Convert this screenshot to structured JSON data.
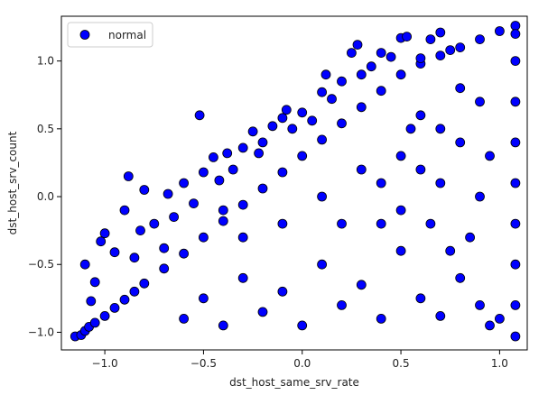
{
  "chart_data": {
    "type": "scatter",
    "xlabel": "dst_host_same_srv_rate",
    "ylabel": "dst_host_srv_count",
    "xlim": [
      -1.22,
      1.14
    ],
    "ylim": [
      -1.13,
      1.33
    ],
    "x_ticks": [
      -1.0,
      -0.5,
      0.0,
      0.5,
      1.0
    ],
    "y_ticks": [
      -1.0,
      -0.5,
      0.0,
      0.5,
      1.0
    ],
    "x_tick_labels": [
      "−1.0",
      "−0.5",
      "0.0",
      "0.5",
      "1.0"
    ],
    "y_tick_labels": [
      "−1.0",
      "−0.5",
      "0.0",
      "0.5",
      "1.0"
    ],
    "legend": {
      "position": "top-left",
      "entries": [
        "normal"
      ]
    },
    "grid": false,
    "series": [
      {
        "name": "normal",
        "color": "#0000ff",
        "edge_color": "#000000",
        "points": [
          [
            -1.15,
            -1.03
          ],
          [
            -1.12,
            -1.02
          ],
          [
            -1.1,
            -0.99
          ],
          [
            -1.08,
            -0.96
          ],
          [
            -1.05,
            -0.93
          ],
          [
            -1.0,
            -0.88
          ],
          [
            -0.95,
            -0.82
          ],
          [
            -0.9,
            -0.76
          ],
          [
            -0.85,
            -0.7
          ],
          [
            -0.8,
            -0.64
          ],
          [
            -0.7,
            -0.53
          ],
          [
            -0.6,
            -0.42
          ],
          [
            -0.5,
            -0.3
          ],
          [
            -0.4,
            -0.18
          ],
          [
            -0.3,
            -0.06
          ],
          [
            -0.2,
            0.06
          ],
          [
            -0.1,
            0.18
          ],
          [
            0.0,
            0.3
          ],
          [
            0.1,
            0.42
          ],
          [
            0.2,
            0.54
          ],
          [
            0.3,
            0.66
          ],
          [
            0.4,
            0.78
          ],
          [
            0.5,
            0.9
          ],
          [
            0.6,
            0.98
          ],
          [
            0.7,
            1.04
          ],
          [
            0.8,
            1.1
          ],
          [
            0.9,
            1.16
          ],
          [
            1.0,
            1.22
          ],
          [
            1.08,
            1.26
          ],
          [
            -1.1,
            -0.5
          ],
          [
            -1.07,
            -0.77
          ],
          [
            -1.05,
            -0.63
          ],
          [
            -1.0,
            -0.27
          ],
          [
            -1.02,
            -0.33
          ],
          [
            -0.95,
            -0.41
          ],
          [
            -0.9,
            -0.1
          ],
          [
            -0.88,
            0.15
          ],
          [
            -0.85,
            -0.45
          ],
          [
            -0.82,
            -0.25
          ],
          [
            -0.8,
            0.05
          ],
          [
            -0.75,
            -0.2
          ],
          [
            -0.7,
            -0.38
          ],
          [
            -0.68,
            0.02
          ],
          [
            -0.65,
            -0.15
          ],
          [
            -0.6,
            0.1
          ],
          [
            -0.55,
            -0.05
          ],
          [
            -0.52,
            0.6
          ],
          [
            -0.5,
            0.18
          ],
          [
            -0.45,
            0.29
          ],
          [
            -0.42,
            0.12
          ],
          [
            -0.4,
            -0.1
          ],
          [
            -0.38,
            0.32
          ],
          [
            -0.35,
            0.2
          ],
          [
            -0.3,
            0.36
          ],
          [
            -0.25,
            0.48
          ],
          [
            -0.22,
            0.32
          ],
          [
            -0.2,
            0.4
          ],
          [
            -0.15,
            0.52
          ],
          [
            -0.1,
            0.58
          ],
          [
            -0.08,
            0.64
          ],
          [
            -0.05,
            0.5
          ],
          [
            0.0,
            0.62
          ],
          [
            0.05,
            0.56
          ],
          [
            0.1,
            0.77
          ],
          [
            0.12,
            0.9
          ],
          [
            0.15,
            0.72
          ],
          [
            0.2,
            0.85
          ],
          [
            0.25,
            1.06
          ],
          [
            0.28,
            1.12
          ],
          [
            0.3,
            0.9
          ],
          [
            0.35,
            0.96
          ],
          [
            0.4,
            1.06
          ],
          [
            0.45,
            1.03
          ],
          [
            0.5,
            1.17
          ],
          [
            0.53,
            1.18
          ],
          [
            0.6,
            1.02
          ],
          [
            0.65,
            1.16
          ],
          [
            0.7,
            1.21
          ],
          [
            0.75,
            1.08
          ],
          [
            -0.6,
            -0.9
          ],
          [
            -0.5,
            -0.75
          ],
          [
            -0.4,
            -0.95
          ],
          [
            -0.3,
            -0.6
          ],
          [
            -0.2,
            -0.85
          ],
          [
            -0.1,
            -0.7
          ],
          [
            0.0,
            -0.95
          ],
          [
            0.1,
            -0.5
          ],
          [
            0.2,
            -0.8
          ],
          [
            0.3,
            -0.65
          ],
          [
            0.4,
            -0.9
          ],
          [
            0.5,
            -0.4
          ],
          [
            0.6,
            -0.75
          ],
          [
            0.7,
            -0.88
          ],
          [
            0.8,
            -0.6
          ],
          [
            0.9,
            -0.8
          ],
          [
            0.95,
            -0.95
          ],
          [
            1.0,
            -0.9
          ],
          [
            -0.3,
            -0.3
          ],
          [
            -0.1,
            -0.2
          ],
          [
            0.1,
            0.0
          ],
          [
            0.2,
            -0.2
          ],
          [
            0.3,
            0.2
          ],
          [
            0.4,
            0.1
          ],
          [
            0.5,
            0.3
          ],
          [
            0.6,
            0.2
          ],
          [
            0.7,
            0.5
          ],
          [
            0.8,
            0.4
          ],
          [
            0.9,
            0.7
          ],
          [
            0.95,
            0.3
          ],
          [
            0.4,
            -0.2
          ],
          [
            0.5,
            -0.1
          ],
          [
            0.6,
            0.6
          ],
          [
            0.7,
            0.1
          ],
          [
            0.8,
            0.8
          ],
          [
            0.9,
            0.0
          ],
          [
            0.85,
            -0.3
          ],
          [
            0.75,
            -0.4
          ],
          [
            0.65,
            -0.2
          ],
          [
            0.55,
            0.5
          ],
          [
            1.08,
            -1.03
          ],
          [
            1.08,
            -0.8
          ],
          [
            1.08,
            -0.5
          ],
          [
            1.08,
            -0.2
          ],
          [
            1.08,
            0.1
          ],
          [
            1.08,
            0.4
          ],
          [
            1.08,
            0.7
          ],
          [
            1.08,
            1.0
          ],
          [
            1.08,
            1.2
          ]
        ]
      }
    ]
  }
}
